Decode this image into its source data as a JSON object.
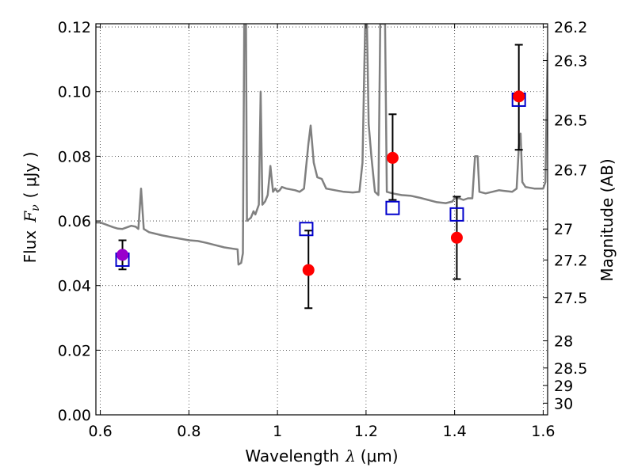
{
  "chart_data": {
    "type": "line",
    "xlabel": "Wavelength",
    "xlabel_symbol": "λ",
    "xlabel_unit": "(μm)",
    "ylabel": "Flux",
    "ylabel_symbol": "F",
    "ylabel_sub": "ν",
    "ylabel_unit": "( μJy )",
    "y2label": "Magnitude (AB)",
    "xlim": [
      0.59,
      1.61
    ],
    "ylim": [
      0.0,
      0.121
    ],
    "grid": true,
    "x_ticks": [
      0.6,
      0.8,
      1.0,
      1.2,
      1.4,
      1.6
    ],
    "x_tick_labels": [
      "0.6",
      "0.8",
      "1",
      "1.2",
      "1.4",
      "1.6"
    ],
    "y_ticks": [
      0.0,
      0.02,
      0.04,
      0.06,
      0.08,
      0.1,
      0.12
    ],
    "y_tick_labels": [
      "0.00",
      "0.02",
      "0.04",
      "0.06",
      "0.08",
      "0.10",
      "0.12"
    ],
    "y2_ticks": [
      {
        "label": "26.2",
        "flux": 0.12
      },
      {
        "label": "26.3",
        "flux": 0.1096
      },
      {
        "label": "26.5",
        "flux": 0.0912
      },
      {
        "label": "26.7",
        "flux": 0.0758
      },
      {
        "label": "27",
        "flux": 0.0575
      },
      {
        "label": "27.2",
        "flux": 0.0479
      },
      {
        "label": "27.5",
        "flux": 0.0363
      },
      {
        "label": "28",
        "flux": 0.0229
      },
      {
        "label": "28.5",
        "flux": 0.0145
      },
      {
        "label": "29",
        "flux": 0.0091
      },
      {
        "label": "30",
        "flux": 0.0036
      }
    ],
    "series": [
      {
        "kind": "model-spectrum",
        "color": "#808080",
        "points": [
          [
            0.59,
            0.0595
          ],
          [
            0.6,
            0.0595
          ],
          [
            0.61,
            0.059
          ],
          [
            0.62,
            0.0585
          ],
          [
            0.63,
            0.058
          ],
          [
            0.64,
            0.0576
          ],
          [
            0.65,
            0.0575
          ],
          [
            0.66,
            0.058
          ],
          [
            0.67,
            0.0585
          ],
          [
            0.68,
            0.0582
          ],
          [
            0.686,
            0.0575
          ],
          [
            0.692,
            0.07
          ],
          [
            0.698,
            0.0575
          ],
          [
            0.71,
            0.0565
          ],
          [
            0.72,
            0.0562
          ],
          [
            0.74,
            0.0555
          ],
          [
            0.76,
            0.055
          ],
          [
            0.78,
            0.0545
          ],
          [
            0.8,
            0.054
          ],
          [
            0.82,
            0.0538
          ],
          [
            0.84,
            0.0532
          ],
          [
            0.86,
            0.0525
          ],
          [
            0.88,
            0.0518
          ],
          [
            0.9,
            0.0514
          ],
          [
            0.91,
            0.0512
          ],
          [
            0.912,
            0.0465
          ],
          [
            0.918,
            0.047
          ],
          [
            0.922,
            0.05
          ],
          [
            0.925,
            0.121
          ],
          [
            0.929,
            0.121
          ],
          [
            0.931,
            0.06
          ],
          [
            0.94,
            0.061
          ],
          [
            0.946,
            0.063
          ],
          [
            0.95,
            0.062
          ],
          [
            0.958,
            0.065
          ],
          [
            0.962,
            0.1
          ],
          [
            0.966,
            0.065
          ],
          [
            0.972,
            0.066
          ],
          [
            0.978,
            0.068
          ],
          [
            0.984,
            0.077
          ],
          [
            0.99,
            0.069
          ],
          [
            0.995,
            0.07
          ],
          [
            1.0,
            0.069
          ],
          [
            1.005,
            0.0695
          ],
          [
            1.01,
            0.0705
          ],
          [
            1.02,
            0.07
          ],
          [
            1.04,
            0.0695
          ],
          [
            1.05,
            0.069
          ],
          [
            1.06,
            0.07
          ],
          [
            1.07,
            0.084
          ],
          [
            1.075,
            0.0895
          ],
          [
            1.082,
            0.078
          ],
          [
            1.09,
            0.0735
          ],
          [
            1.1,
            0.073
          ],
          [
            1.11,
            0.07
          ],
          [
            1.13,
            0.0695
          ],
          [
            1.15,
            0.069
          ],
          [
            1.17,
            0.0688
          ],
          [
            1.185,
            0.069
          ],
          [
            1.192,
            0.078
          ],
          [
            1.198,
            0.121
          ],
          [
            1.202,
            0.121
          ],
          [
            1.206,
            0.09
          ],
          [
            1.212,
            0.08
          ],
          [
            1.22,
            0.069
          ],
          [
            1.228,
            0.068
          ],
          [
            1.232,
            0.121
          ],
          [
            1.243,
            0.121
          ],
          [
            1.247,
            0.069
          ],
          [
            1.26,
            0.0685
          ],
          [
            1.28,
            0.068
          ],
          [
            1.3,
            0.0678
          ],
          [
            1.32,
            0.0672
          ],
          [
            1.34,
            0.0665
          ],
          [
            1.36,
            0.0658
          ],
          [
            1.38,
            0.0655
          ],
          [
            1.395,
            0.066
          ],
          [
            1.4,
            0.067
          ],
          [
            1.41,
            0.067
          ],
          [
            1.42,
            0.0665
          ],
          [
            1.43,
            0.067
          ],
          [
            1.44,
            0.067
          ],
          [
            1.446,
            0.08
          ],
          [
            1.452,
            0.08
          ],
          [
            1.456,
            0.069
          ],
          [
            1.47,
            0.0685
          ],
          [
            1.5,
            0.0695
          ],
          [
            1.53,
            0.069
          ],
          [
            1.54,
            0.07
          ],
          [
            1.545,
            0.083
          ],
          [
            1.549,
            0.087
          ],
          [
            1.553,
            0.072
          ],
          [
            1.56,
            0.0705
          ],
          [
            1.58,
            0.07
          ],
          [
            1.6,
            0.07
          ],
          [
            1.605,
            0.072
          ],
          [
            1.61,
            0.112
          ]
        ]
      },
      {
        "kind": "synthetic-photometry",
        "marker": "square",
        "color": "#0000cc",
        "points": [
          [
            0.65,
            0.048
          ],
          [
            1.065,
            0.0575
          ],
          [
            1.26,
            0.064
          ],
          [
            1.405,
            0.062
          ],
          [
            1.545,
            0.0975
          ]
        ]
      },
      {
        "kind": "observed-photometry",
        "marker": "circle",
        "color": "#ff0000",
        "first_point_color": "#9900cc",
        "points": [
          {
            "x": 0.65,
            "y": 0.0495,
            "err_lo": 0.045,
            "err_hi": 0.054
          },
          {
            "x": 1.07,
            "y": 0.0448,
            "err_lo": 0.033,
            "err_hi": 0.057
          },
          {
            "x": 1.26,
            "y": 0.0795,
            "err_lo": 0.0665,
            "err_hi": 0.093
          },
          {
            "x": 1.405,
            "y": 0.0548,
            "err_lo": 0.042,
            "err_hi": 0.0675
          },
          {
            "x": 1.545,
            "y": 0.0985,
            "err_lo": 0.082,
            "err_hi": 0.1145
          }
        ]
      }
    ]
  }
}
